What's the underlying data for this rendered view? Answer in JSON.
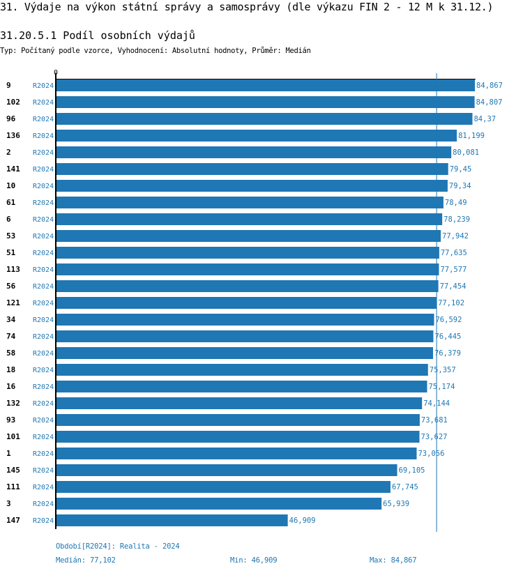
{
  "title": "31. Výdaje na výkon státní správy a samosprávy (dle výkazu FIN 2 - 12 M k 31.12.)",
  "subtitle": "31.20.5.1 Podíl osobních výdajů",
  "typ": "Typ: Počítaný podle vzorce, Vyhodnocení: Absolutní hodnoty, Průměr: Medián",
  "footer": {
    "period": "Období[R2024]: Realita - 2024",
    "median": "Medián: 77,102",
    "min": "Min: 46,909",
    "max": "Max: 84,867"
  },
  "chart_data": {
    "type": "bar",
    "orientation": "horizontal",
    "axis_zero_label": "0",
    "xlim": [
      0,
      84.867
    ],
    "median": 77.102,
    "bar_color": "#1f77b4",
    "series_label": "R2024",
    "categories": [
      "9",
      "102",
      "96",
      "136",
      "2",
      "141",
      "10",
      "61",
      "6",
      "53",
      "51",
      "113",
      "56",
      "121",
      "34",
      "74",
      "58",
      "18",
      "16",
      "132",
      "93",
      "101",
      "1",
      "145",
      "111",
      "3",
      "147"
    ],
    "values": [
      84.867,
      84.807,
      84.37,
      81.199,
      80.081,
      79.45,
      79.34,
      78.49,
      78.239,
      77.942,
      77.635,
      77.577,
      77.454,
      77.102,
      76.592,
      76.445,
      76.379,
      75.357,
      75.174,
      74.144,
      73.681,
      73.627,
      73.056,
      69.105,
      67.745,
      65.939,
      46.909
    ],
    "value_labels": [
      "84,867",
      "84,807",
      "84,37",
      "81,199",
      "80,081",
      "79,45",
      "79,34",
      "78,49",
      "78,239",
      "77,942",
      "77,635",
      "77,577",
      "77,454",
      "77,102",
      "76,592",
      "76,445",
      "76,379",
      "75,357",
      "75,174",
      "74,144",
      "73,681",
      "73,627",
      "73,056",
      "69,105",
      "67,745",
      "65,939",
      "46,909"
    ]
  }
}
